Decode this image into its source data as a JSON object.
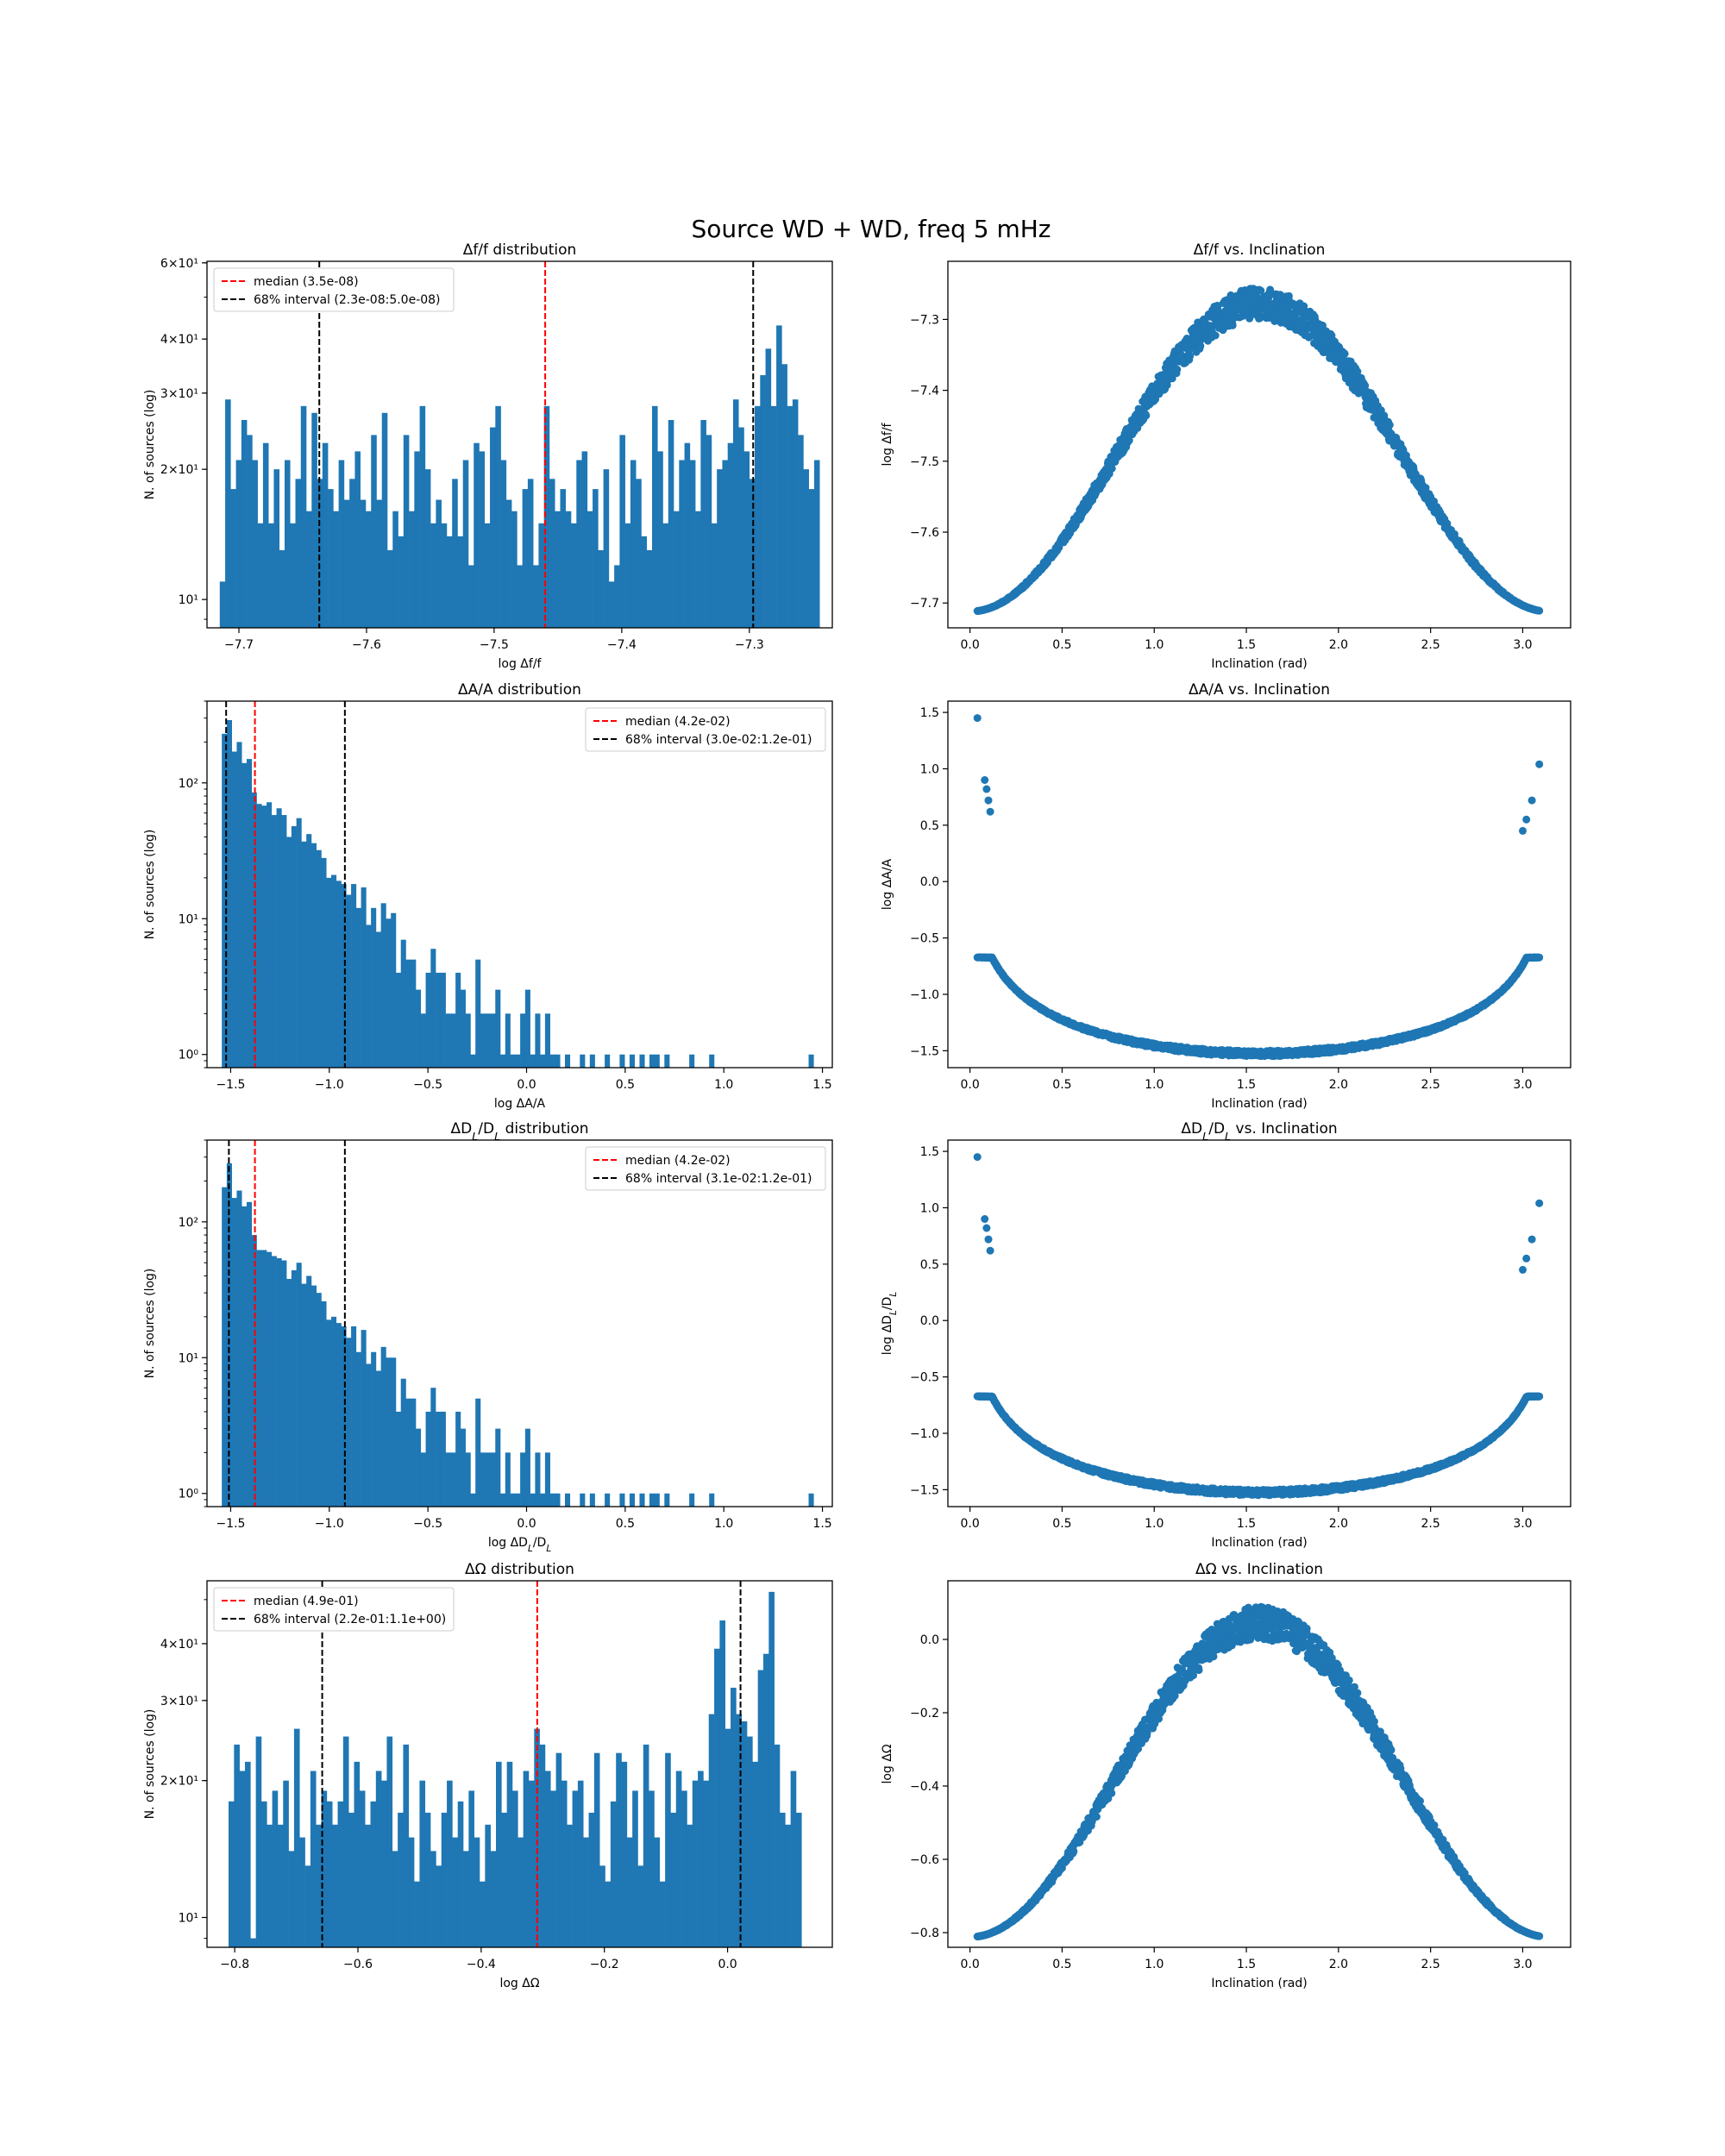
{
  "suptitle": "Source WD + WD, freq 5 mHz",
  "colors": {
    "bar": "#1f77b4",
    "point": "#1f77b4",
    "median": "#ff0000",
    "interval": "#000000"
  },
  "chart_data": [
    {
      "type": "bar",
      "title": "Δf/f distribution",
      "xlabel": "log Δf/f",
      "ylabel": "N. of sources (log)",
      "yscale": "log",
      "xlim": [
        -7.725,
        -7.235
      ],
      "ylim": [
        8.6,
        60.5
      ],
      "xticks": [
        -7.7,
        -7.6,
        -7.5,
        -7.4,
        -7.3
      ],
      "xtick_labels": [
        "−7.7",
        "−7.6",
        "−7.5",
        "−7.4",
        "−7.3"
      ],
      "yticks": [
        10,
        20,
        30,
        40,
        60
      ],
      "ytick_labels": [
        "10¹",
        "2×10¹",
        "3×10¹",
        "4×10¹",
        "6×10¹"
      ],
      "bin_range": [
        -7.715,
        -7.245
      ],
      "counts": [
        11,
        29,
        18,
        21,
        26,
        24,
        21,
        15,
        23,
        15,
        20,
        13,
        21,
        15,
        19,
        28,
        16,
        27,
        19,
        23,
        18,
        16,
        21,
        17,
        19,
        22,
        17,
        16,
        24,
        17,
        27,
        13,
        16,
        14,
        24,
        16,
        22,
        28,
        20,
        15,
        17,
        15,
        14,
        19,
        14,
        21,
        12,
        23,
        22,
        15,
        25,
        28,
        21,
        17,
        16,
        12,
        18,
        19,
        12,
        15,
        28,
        19,
        16,
        18,
        16,
        15,
        21,
        22,
        16,
        18,
        13,
        20,
        11,
        12,
        24,
        15,
        21,
        19,
        14,
        13,
        28,
        22,
        15,
        26,
        16,
        21,
        23,
        21,
        16,
        26,
        24,
        15,
        20,
        21,
        23,
        29,
        25,
        22,
        19,
        28,
        33,
        38,
        28,
        43,
        35,
        28,
        29,
        24,
        20,
        18,
        21
      ],
      "median": -7.46,
      "interval": [
        -7.637,
        -7.297
      ],
      "legend": [
        "median (3.5e-08)",
        "68% interval (2.3e-08:5.0e-08)"
      ],
      "legend_position": "upper left"
    },
    {
      "type": "bar",
      "title": "ΔA/A distribution",
      "xlabel": "log ΔA/A",
      "ylabel": "N. of sources (log)",
      "yscale": "log",
      "xlim": [
        -1.62,
        1.55
      ],
      "ylim": [
        0.8,
        400
      ],
      "xticks": [
        -1.5,
        -1.0,
        -0.5,
        0.0,
        0.5,
        1.0,
        1.5
      ],
      "xtick_labels": [
        "−1.5",
        "−1.0",
        "−0.5",
        "0.0",
        "0.5",
        "1.0",
        "1.5"
      ],
      "yticks": [
        1,
        10,
        100
      ],
      "ytick_labels": [
        "10⁰",
        "10¹",
        "10²"
      ],
      "bin_range": [
        -1.545,
        1.455
      ],
      "counts": [
        230,
        290,
        170,
        200,
        140,
        150,
        85,
        70,
        68,
        72,
        58,
        65,
        58,
        40,
        48,
        55,
        37,
        42,
        36,
        32,
        28,
        20,
        21,
        19,
        18,
        15,
        18,
        12,
        17,
        9,
        12,
        8,
        13,
        10,
        11,
        4,
        7,
        5,
        5,
        3,
        2,
        4,
        6,
        4,
        4,
        2,
        2,
        4,
        3,
        2,
        1,
        5,
        2,
        2,
        2,
        3,
        1,
        2,
        1,
        1,
        2,
        3,
        1,
        2,
        1,
        2,
        1,
        1,
        0,
        1,
        0,
        0,
        1,
        0,
        1,
        0,
        0,
        1,
        0,
        0,
        1,
        0,
        1,
        0,
        1,
        0,
        1,
        1,
        0,
        1,
        0,
        0,
        0,
        0,
        1,
        0,
        0,
        0,
        1,
        0,
        0,
        0,
        0,
        0,
        0,
        0,
        0,
        0,
        0,
        0,
        0,
        0,
        0,
        0,
        0,
        0,
        0,
        0,
        1
      ],
      "median": -1.377,
      "interval": [
        -1.523,
        -0.921
      ],
      "legend": [
        "median (4.2e-02)",
        "68% interval (3.0e-02:1.2e-01)"
      ],
      "legend_position": "upper right"
    },
    {
      "type": "bar",
      "title": "ΔD_L/D_L distribution",
      "xlabel": "log ΔD_L/D_L",
      "ylabel": "N. of sources (log)",
      "yscale": "log",
      "xlim": [
        -1.62,
        1.55
      ],
      "ylim": [
        0.8,
        400
      ],
      "xticks": [
        -1.5,
        -1.0,
        -0.5,
        0.0,
        0.5,
        1.0,
        1.5
      ],
      "xtick_labels": [
        "−1.5",
        "−1.0",
        "−0.5",
        "0.0",
        "0.5",
        "1.0",
        "1.5"
      ],
      "yticks": [
        1,
        10,
        100
      ],
      "ytick_labels": [
        "10⁰",
        "10¹",
        "10²"
      ],
      "bin_range": [
        -1.545,
        1.455
      ],
      "counts": [
        180,
        270,
        150,
        170,
        130,
        140,
        80,
        62,
        62,
        60,
        56,
        54,
        52,
        38,
        44,
        50,
        35,
        40,
        34,
        30,
        26,
        19,
        20,
        18,
        17,
        14,
        17,
        11,
        16,
        9,
        11,
        8,
        12,
        10,
        10,
        4,
        7,
        5,
        5,
        3,
        2,
        4,
        6,
        4,
        4,
        2,
        2,
        4,
        3,
        2,
        1,
        5,
        2,
        2,
        2,
        3,
        1,
        2,
        1,
        1,
        2,
        3,
        1,
        2,
        1,
        2,
        1,
        1,
        0,
        1,
        0,
        0,
        1,
        0,
        1,
        0,
        0,
        1,
        0,
        0,
        1,
        0,
        1,
        0,
        1,
        0,
        1,
        1,
        0,
        1,
        0,
        0,
        0,
        0,
        1,
        0,
        0,
        0,
        1,
        0,
        0,
        0,
        0,
        0,
        0,
        0,
        0,
        0,
        0,
        0,
        0,
        0,
        0,
        0,
        0,
        0,
        0,
        0,
        1
      ],
      "median": -1.377,
      "interval": [
        -1.509,
        -0.921
      ],
      "legend": [
        "median (4.2e-02)",
        "68% interval (3.1e-02:1.2e-01)"
      ],
      "legend_position": "upper right"
    },
    {
      "type": "bar",
      "title": "ΔΩ distribution",
      "xlabel": "log ΔΩ",
      "ylabel": "N. of sources (log)",
      "yscale": "log",
      "xlim": [
        -0.845,
        0.17
      ],
      "ylim": [
        8.6,
        55
      ],
      "xticks": [
        -0.8,
        -0.6,
        -0.4,
        -0.2,
        0.0
      ],
      "xtick_labels": [
        "−0.8",
        "−0.6",
        "−0.4",
        "−0.2",
        "0.0"
      ],
      "yticks": [
        10,
        20,
        30,
        40
      ],
      "ytick_labels": [
        "10¹",
        "2×10¹",
        "3×10¹",
        "4×10¹"
      ],
      "bin_range": [
        -0.81,
        0.12
      ],
      "counts": [
        18,
        24,
        21,
        22,
        9,
        25,
        18,
        16,
        19,
        16,
        20,
        14,
        26,
        15,
        13,
        21,
        16,
        19,
        18,
        16,
        18,
        25,
        17,
        22,
        19,
        16,
        18,
        21,
        20,
        25,
        14,
        17,
        24,
        15,
        12,
        20,
        17,
        14,
        13,
        17,
        20,
        15,
        18,
        14,
        19,
        15,
        12,
        16,
        14,
        22,
        17,
        22,
        19,
        15,
        21,
        20,
        26,
        24,
        21,
        19,
        23,
        20,
        16,
        19,
        20,
        15,
        17,
        23,
        13,
        12,
        18,
        23,
        22,
        15,
        19,
        13,
        24,
        19,
        15,
        12,
        23,
        17,
        21,
        19,
        16,
        20,
        21,
        20,
        28,
        39,
        45,
        26,
        32,
        28,
        27,
        25,
        22,
        35,
        38,
        52,
        24,
        17,
        16,
        21,
        17
      ],
      "median": -0.309,
      "interval": [
        -0.658,
        0.021
      ],
      "legend": [
        "median (4.9e-01)",
        "68% interval (2.2e-01:1.1e+00)"
      ],
      "legend_position": "upper left"
    },
    {
      "type": "scatter",
      "title": "Δf/f vs. Inclination",
      "xlabel": "Inclination (rad)",
      "ylabel": "log Δf/f",
      "xlim": [
        -0.12,
        3.26
      ],
      "ylim": [
        -7.735,
        -7.218
      ],
      "xticks": [
        0.0,
        0.5,
        1.0,
        1.5,
        2.0,
        2.5,
        3.0
      ],
      "xtick_labels": [
        "0.0",
        "0.5",
        "1.0",
        "1.5",
        "2.0",
        "2.5",
        "3.0"
      ],
      "yticks": [
        -7.7,
        -7.6,
        -7.5,
        -7.4,
        -7.3
      ],
      "ytick_labels": [
        "−7.7",
        "−7.6",
        "−7.5",
        "−7.4",
        "−7.3"
      ],
      "x_range": [
        0.04,
        3.09
      ],
      "curve": "bell",
      "y_edge": -7.712,
      "y_peak": -7.255,
      "spread": 0.045,
      "peak_center": 1.57
    },
    {
      "type": "scatter",
      "title": "ΔA/A vs. Inclination",
      "xlabel": "Inclination (rad)",
      "ylabel": "log ΔA/A",
      "xlim": [
        -0.12,
        3.26
      ],
      "ylim": [
        -1.65,
        1.6
      ],
      "xticks": [
        0.0,
        0.5,
        1.0,
        1.5,
        2.0,
        2.5,
        3.0
      ],
      "xtick_labels": [
        "0.0",
        "0.5",
        "1.0",
        "1.5",
        "2.0",
        "2.5",
        "3.0"
      ],
      "yticks": [
        -1.5,
        -1.0,
        -0.5,
        0.0,
        0.5,
        1.0,
        1.5
      ],
      "ytick_labels": [
        "−1.5",
        "−1.0",
        "−0.5",
        "0.0",
        "0.5",
        "1.0",
        "1.5"
      ],
      "x_range": [
        0.04,
        3.09
      ],
      "curve": "bowl",
      "y_min": -1.52,
      "spread": 0.05,
      "extra_points": [
        [
          0.04,
          1.45
        ],
        [
          0.08,
          0.9
        ],
        [
          0.09,
          0.82
        ],
        [
          0.1,
          0.72
        ],
        [
          0.11,
          0.62
        ],
        [
          3.0,
          0.45
        ],
        [
          3.02,
          0.55
        ],
        [
          3.05,
          0.72
        ],
        [
          3.09,
          1.04
        ]
      ]
    },
    {
      "type": "scatter",
      "title": "ΔD_L/D_L vs. Inclination",
      "xlabel": "Inclination (rad)",
      "ylabel": "log ΔD_L/D_L",
      "xlim": [
        -0.12,
        3.26
      ],
      "ylim": [
        -1.65,
        1.6
      ],
      "xticks": [
        0.0,
        0.5,
        1.0,
        1.5,
        2.0,
        2.5,
        3.0
      ],
      "xtick_labels": [
        "0.0",
        "0.5",
        "1.0",
        "1.5",
        "2.0",
        "2.5",
        "3.0"
      ],
      "yticks": [
        -1.5,
        -1.0,
        -0.5,
        0.0,
        0.5,
        1.0,
        1.5
      ],
      "ytick_labels": [
        "−1.5",
        "−1.0",
        "−0.5",
        "0.0",
        "0.5",
        "1.0",
        "1.5"
      ],
      "x_range": [
        0.04,
        3.09
      ],
      "curve": "bowl",
      "y_min": -1.52,
      "spread": 0.05,
      "extra_points": [
        [
          0.04,
          1.45
        ],
        [
          0.08,
          0.9
        ],
        [
          0.09,
          0.82
        ],
        [
          0.1,
          0.72
        ],
        [
          0.11,
          0.62
        ],
        [
          3.0,
          0.45
        ],
        [
          3.02,
          0.55
        ],
        [
          3.05,
          0.72
        ],
        [
          3.09,
          1.04
        ]
      ]
    },
    {
      "type": "scatter",
      "title": "ΔΩ vs. Inclination",
      "xlabel": "Inclination (rad)",
      "ylabel": "log ΔΩ",
      "xlim": [
        -0.12,
        3.26
      ],
      "ylim": [
        -0.84,
        0.16
      ],
      "xticks": [
        0.0,
        0.5,
        1.0,
        1.5,
        2.0,
        2.5,
        3.0
      ],
      "xtick_labels": [
        "0.0",
        "0.5",
        "1.0",
        "1.5",
        "2.0",
        "2.5",
        "3.0"
      ],
      "yticks": [
        -0.8,
        -0.6,
        -0.4,
        -0.2,
        0.0
      ],
      "ytick_labels": [
        "−0.8",
        "−0.6",
        "−0.4",
        "−0.2",
        "0.0"
      ],
      "x_range": [
        0.04,
        3.09
      ],
      "curve": "bell",
      "y_edge": -0.812,
      "y_peak": 0.09,
      "spread": 0.09,
      "peak_center": 1.57
    }
  ]
}
